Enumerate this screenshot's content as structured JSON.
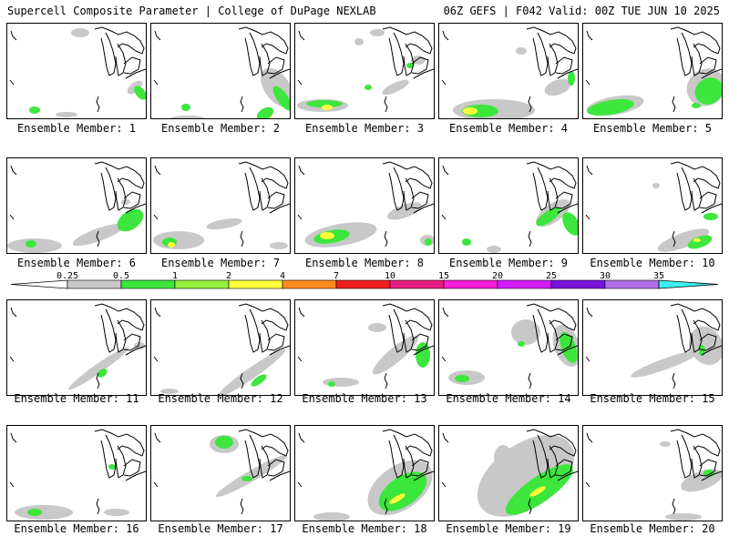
{
  "header": {
    "left": "Supercell Composite Parameter | College of DuPage NEXLAB",
    "right": "06Z GEFS | F042 Valid: 00Z TUE JUN 10 2025"
  },
  "colorbar": {
    "ticks": [
      "0.25",
      "0.5",
      "1",
      "2",
      "4",
      "7",
      "10",
      "15",
      "20",
      "25",
      "30",
      "35"
    ],
    "colors": [
      "#c8c8c8",
      "#3ce63c",
      "#96f03c",
      "#ffff3c",
      "#ff8c1e",
      "#f01e1e",
      "#e61e82",
      "#ff1edc",
      "#d21eff",
      "#7814dc",
      "#b46ee6",
      "#3cf0f0"
    ]
  },
  "panels": [
    {
      "label": "Ensemble Member: 1"
    },
    {
      "label": "Ensemble Member: 2"
    },
    {
      "label": "Ensemble Member: 3"
    },
    {
      "label": "Ensemble Member: 4"
    },
    {
      "label": "Ensemble Member: 5"
    },
    {
      "label": "Ensemble Member: 6"
    },
    {
      "label": "Ensemble Member: 7"
    },
    {
      "label": "Ensemble Member: 8"
    },
    {
      "label": "Ensemble Member: 9"
    },
    {
      "label": "Ensemble Member: 10"
    },
    {
      "label": "Ensemble Member: 11"
    },
    {
      "label": "Ensemble Member: 12"
    },
    {
      "label": "Ensemble Member: 13"
    },
    {
      "label": "Ensemble Member: 14"
    },
    {
      "label": "Ensemble Member: 15"
    },
    {
      "label": "Ensemble Member: 16"
    },
    {
      "label": "Ensemble Member: 17"
    },
    {
      "label": "Ensemble Member: 18"
    },
    {
      "label": "Ensemble Member: 19"
    },
    {
      "label": "Ensemble Member: 20"
    }
  ]
}
